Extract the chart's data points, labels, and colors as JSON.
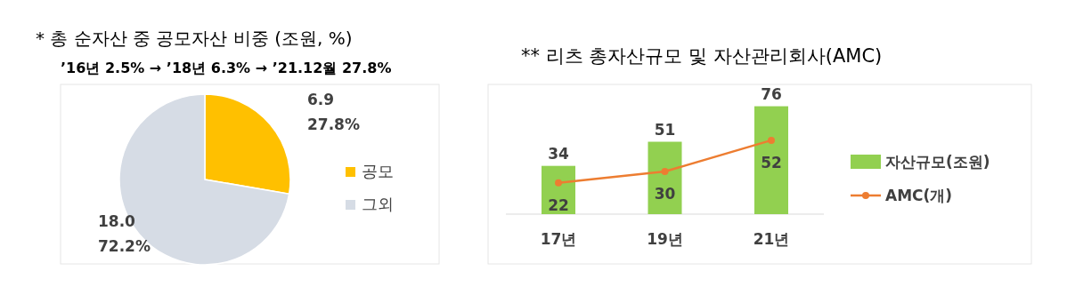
{
  "chart_data": [
    {
      "type": "pie",
      "title": "* 총 순자산 중 공모자산 비중 (조원, %)",
      "subtitle": "’16년 2.5% → ’18년 6.3% → ’21.12월 27.8%",
      "categories": [
        "공모",
        "그외"
      ],
      "values": [
        6.9,
        18.0
      ],
      "colors": [
        "#ffc000",
        "#d6dce5"
      ],
      "value_labels": [
        "6.9\n27.8%",
        "18.0\n72.2%"
      ],
      "legend": "right"
    },
    {
      "type": "bar",
      "title": "** 리츠 총자산규모 및 자산관리회사(AMC)",
      "categories": [
        "17년",
        "19년",
        "21년"
      ],
      "data_labels": true,
      "legend": "right",
      "series": [
        {
          "name": "자산규모(조원)",
          "color": "#92d050",
          "values": [
            34,
            51,
            76
          ]
        },
        {
          "name": "AMC(개)",
          "type": "line",
          "color": "#ed7d31",
          "marker": "circle",
          "values": [
            22,
            30,
            52
          ]
        }
      ]
    }
  ]
}
